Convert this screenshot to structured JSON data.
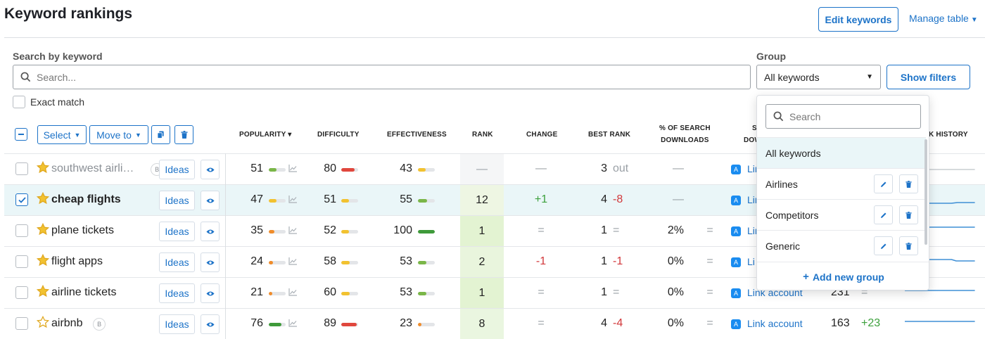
{
  "header": {
    "title": "Keyword rankings",
    "edit_keywords": "Edit keywords",
    "manage_table": "Manage table"
  },
  "search": {
    "label": "Search by keyword",
    "placeholder": "Search...",
    "exact_match": "Exact match"
  },
  "group": {
    "label": "Group",
    "selected": "All keywords",
    "show_filters": "Show filters"
  },
  "toolbar": {
    "select_label": "Select",
    "move_to_label": "Move to"
  },
  "columns": {
    "popularity": "POPULARITY",
    "difficulty": "DIFFICULTY",
    "effectiveness": "EFFECTIVENESS",
    "rank": "RANK",
    "change": "CHANGE",
    "best_rank": "BEST RANK",
    "pct_search_line1": "% OF SEARCH",
    "pct_search_line2": "DOWNLOADS",
    "s_col_line1": "S",
    "s_col_line2": "DOW",
    "k_history": "K HISTORY"
  },
  "rows": [
    {
      "keyword": "southwest airli…",
      "badge": "B",
      "ideas": "Ideas",
      "popularity": "51",
      "pop_pct": 0.45,
      "difficulty": "80",
      "diff_pct": 0.8,
      "effectiveness": "43",
      "eff_pct": 0.45,
      "rank": "—",
      "change": "—",
      "best": "3",
      "best_chg": "out",
      "pct": "—",
      "pct_eq": "",
      "link": "Lin",
      "r_rank": "",
      "r_chg": "—"
    },
    {
      "keyword": "cheap flights",
      "badge": "",
      "ideas": "Ideas",
      "popularity": "47",
      "pop_pct": 0.45,
      "difficulty": "51",
      "diff_pct": 0.45,
      "effectiveness": "55",
      "eff_pct": 0.55,
      "rank": "12",
      "change": "+1",
      "best": "4",
      "best_chg": "-8",
      "pct": "—",
      "pct_eq": "",
      "link": "Lin",
      "r_rank": "",
      "r_chg": ""
    },
    {
      "keyword": "plane tickets",
      "badge": "",
      "ideas": "Ideas",
      "popularity": "35",
      "pop_pct": 0.35,
      "difficulty": "52",
      "diff_pct": 0.45,
      "effectiveness": "100",
      "eff_pct": 1.0,
      "rank": "1",
      "change": "=",
      "best": "1",
      "best_chg": "=",
      "pct": "2%",
      "pct_eq": "=",
      "link": "Lin",
      "r_rank": "",
      "r_chg": ""
    },
    {
      "keyword": "flight apps",
      "badge": "",
      "ideas": "Ideas",
      "popularity": "24",
      "pop_pct": 0.25,
      "difficulty": "58",
      "diff_pct": 0.5,
      "effectiveness": "53",
      "eff_pct": 0.5,
      "rank": "2",
      "change": "-1",
      "best": "1",
      "best_chg": "-1",
      "pct": "0%",
      "pct_eq": "=",
      "link": "Li",
      "r_rank": "",
      "r_chg": ""
    },
    {
      "keyword": "airline tickets",
      "badge": "",
      "ideas": "Ideas",
      "popularity": "21",
      "pop_pct": 0.2,
      "difficulty": "60",
      "diff_pct": 0.5,
      "effectiveness": "53",
      "eff_pct": 0.5,
      "rank": "1",
      "change": "=",
      "best": "1",
      "best_chg": "=",
      "pct": "0%",
      "pct_eq": "=",
      "link": "Link account",
      "r_rank": "231",
      "r_chg": "="
    },
    {
      "keyword": "airbnb",
      "badge": "B",
      "ideas": "Ideas",
      "popularity": "76",
      "pop_pct": 0.75,
      "difficulty": "89",
      "diff_pct": 0.9,
      "effectiveness": "23",
      "eff_pct": 0.2,
      "rank": "8",
      "change": "=",
      "best": "4",
      "best_chg": "-4",
      "pct": "0%",
      "pct_eq": "=",
      "link": "Link account",
      "r_rank": "163",
      "r_chg": "+23"
    }
  ],
  "dropdown": {
    "search_placeholder": "Search",
    "items": [
      "All keywords",
      "Airlines",
      "Competitors",
      "Generic"
    ],
    "add_group": "Add new group"
  },
  "colors": {
    "accent": "#1d73c8",
    "green": "#3da13d",
    "red": "#d2373a",
    "bar_green": "#7ab648",
    "bar_dark_green": "#3e9a3a",
    "bar_yellow": "#f2c230",
    "bar_orange": "#f08c2a",
    "bar_red": "#e0473d"
  }
}
